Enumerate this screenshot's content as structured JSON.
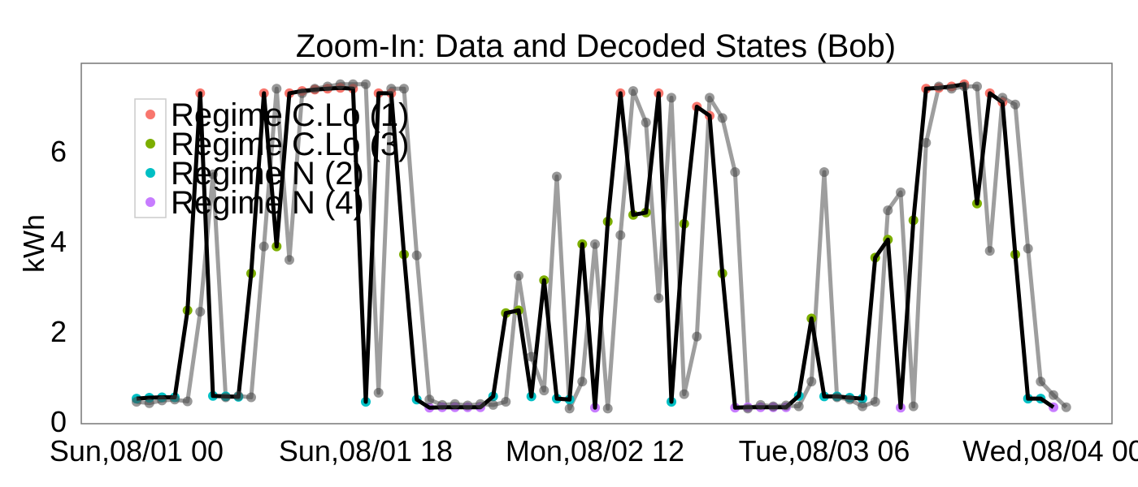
{
  "chart_data": {
    "type": "line",
    "title": "Zoom-In: Data and Decoded States (Bob)",
    "xlabel": "",
    "ylabel": "kWh",
    "ylim": [
      0,
      7.8
    ],
    "yticks": [
      0,
      2,
      4,
      6
    ],
    "xtick_labels": [
      "Sun,08/01 00",
      "Sun,08/01 18",
      "Mon,08/02 12",
      "Tue,08/03 06",
      "Wed,08/04 00"
    ],
    "xtick_hours": [
      0,
      18,
      36,
      54,
      72
    ],
    "grid": false,
    "legend_position": "top-left",
    "legend": [
      {
        "name": "Regime C.Lo (1)",
        "color": "#F8766D"
      },
      {
        "name": "Regime C.Lo (3)",
        "color": "#7CAE00"
      },
      {
        "name": "Regime N (2)",
        "color": "#00BFC4"
      },
      {
        "name": "Regime N (4)",
        "color": "#C77CFF"
      }
    ],
    "state_colors": {
      "1": "#F8766D",
      "3": "#7CAE00",
      "2": "#00BFC4",
      "4": "#C77CFF"
    },
    "observed_color": "#9E9E9E",
    "decoded_color": "#000000",
    "series": [
      {
        "name": "observed",
        "points": [
          [
            0,
            0.45
          ],
          [
            1,
            0.42
          ],
          [
            2,
            0.48
          ],
          [
            3,
            0.5
          ],
          [
            4,
            0.46
          ],
          [
            5,
            2.45
          ],
          [
            6,
            5.5
          ],
          [
            7,
            0.55
          ],
          [
            8,
            0.58
          ],
          [
            9,
            0.55
          ],
          [
            10,
            3.9
          ],
          [
            11,
            7.4
          ],
          [
            12,
            3.6
          ],
          [
            13,
            7.3
          ],
          [
            14,
            7.4
          ],
          [
            15,
            7.45
          ],
          [
            16,
            7.5
          ],
          [
            17,
            7.5
          ],
          [
            18,
            7.5
          ],
          [
            19,
            0.65
          ],
          [
            20,
            7.4
          ],
          [
            21,
            7.4
          ],
          [
            22,
            3.7
          ],
          [
            23,
            0.5
          ],
          [
            24,
            0.38
          ],
          [
            25,
            0.4
          ],
          [
            26,
            0.37
          ],
          [
            27,
            0.4
          ],
          [
            28,
            0.38
          ],
          [
            29,
            0.45
          ],
          [
            30,
            3.25
          ],
          [
            31,
            1.45
          ],
          [
            32,
            0.7
          ],
          [
            33,
            5.45
          ],
          [
            34,
            0.3
          ],
          [
            35,
            0.9
          ],
          [
            36,
            3.95
          ],
          [
            37,
            0.3
          ],
          [
            38,
            4.15
          ],
          [
            39,
            7.35
          ],
          [
            40,
            6.65
          ],
          [
            41,
            2.75
          ],
          [
            42,
            7.2
          ],
          [
            43,
            0.62
          ],
          [
            44,
            1.9
          ],
          [
            45,
            7.2
          ],
          [
            46,
            6.75
          ],
          [
            47,
            5.55
          ],
          [
            48,
            0.3
          ],
          [
            49,
            0.38
          ],
          [
            50,
            0.35
          ],
          [
            51,
            0.37
          ],
          [
            52,
            0.35
          ],
          [
            53,
            0.9
          ],
          [
            54,
            5.55
          ],
          [
            55,
            0.55
          ],
          [
            56,
            0.5
          ],
          [
            57,
            0.35
          ],
          [
            58,
            0.45
          ],
          [
            59,
            4.7
          ],
          [
            60,
            5.1
          ],
          [
            61,
            0.35
          ],
          [
            62,
            6.2
          ],
          [
            63,
            7.45
          ],
          [
            64,
            7.4
          ],
          [
            65,
            7.45
          ],
          [
            66,
            7.45
          ],
          [
            67,
            3.8
          ],
          [
            68,
            7.2
          ],
          [
            69,
            7.05
          ],
          [
            70,
            3.85
          ],
          [
            71,
            0.9
          ],
          [
            72,
            0.6
          ],
          [
            73,
            0.33
          ]
        ]
      },
      {
        "name": "decoded",
        "points": [
          [
            0,
            0.52,
            2
          ],
          [
            1,
            0.54,
            2
          ],
          [
            2,
            0.55,
            2
          ],
          [
            3,
            0.55,
            2
          ],
          [
            4,
            2.48,
            3
          ],
          [
            5,
            7.3,
            1
          ],
          [
            6,
            0.58,
            2
          ],
          [
            7,
            0.57,
            2
          ],
          [
            8,
            0.56,
            2
          ],
          [
            9,
            3.3,
            3
          ],
          [
            10,
            7.3,
            1
          ],
          [
            11,
            3.9,
            3
          ],
          [
            12,
            7.3,
            1
          ],
          [
            13,
            7.35,
            1
          ],
          [
            14,
            7.38,
            1
          ],
          [
            15,
            7.4,
            1
          ],
          [
            16,
            7.42,
            1
          ],
          [
            17,
            7.4,
            1
          ],
          [
            18,
            0.45,
            2
          ],
          [
            19,
            7.3,
            1
          ],
          [
            20,
            7.3,
            1
          ],
          [
            21,
            3.72,
            3
          ],
          [
            22,
            0.5,
            2
          ],
          [
            23,
            0.32,
            4
          ],
          [
            24,
            0.33,
            4
          ],
          [
            25,
            0.33,
            4
          ],
          [
            26,
            0.33,
            4
          ],
          [
            27,
            0.33,
            4
          ],
          [
            28,
            0.57,
            2
          ],
          [
            29,
            2.42,
            3
          ],
          [
            30,
            2.48,
            3
          ],
          [
            31,
            0.57,
            2
          ],
          [
            32,
            3.15,
            3
          ],
          [
            33,
            0.52,
            2
          ],
          [
            34,
            0.5,
            2
          ],
          [
            35,
            3.95,
            3
          ],
          [
            36,
            0.32,
            4
          ],
          [
            37,
            4.45,
            3
          ],
          [
            38,
            7.3,
            1
          ],
          [
            39,
            4.6,
            3
          ],
          [
            40,
            4.65,
            3
          ],
          [
            41,
            7.3,
            1
          ],
          [
            42,
            0.45,
            2
          ],
          [
            43,
            4.4,
            3
          ],
          [
            44,
            7.0,
            1
          ],
          [
            45,
            6.8,
            1
          ],
          [
            46,
            3.3,
            3
          ],
          [
            47,
            0.32,
            4
          ],
          [
            48,
            0.33,
            4
          ],
          [
            49,
            0.33,
            4
          ],
          [
            50,
            0.33,
            4
          ],
          [
            51,
            0.33,
            4
          ],
          [
            52,
            0.58,
            2
          ],
          [
            53,
            2.3,
            3
          ],
          [
            54,
            0.57,
            2
          ],
          [
            55,
            0.57,
            2
          ],
          [
            56,
            0.54,
            2
          ],
          [
            57,
            0.52,
            2
          ],
          [
            58,
            3.65,
            3
          ],
          [
            59,
            4.05,
            3
          ],
          [
            60,
            0.32,
            4
          ],
          [
            61,
            4.48,
            3
          ],
          [
            62,
            7.4,
            1
          ],
          [
            63,
            7.42,
            1
          ],
          [
            64,
            7.45,
            1
          ],
          [
            65,
            7.5,
            1
          ],
          [
            66,
            4.85,
            3
          ],
          [
            67,
            7.3,
            1
          ],
          [
            68,
            7.1,
            1
          ],
          [
            69,
            3.72,
            3
          ],
          [
            70,
            0.52,
            2
          ],
          [
            71,
            0.52,
            2
          ],
          [
            72,
            0.33,
            4
          ]
        ]
      }
    ]
  }
}
